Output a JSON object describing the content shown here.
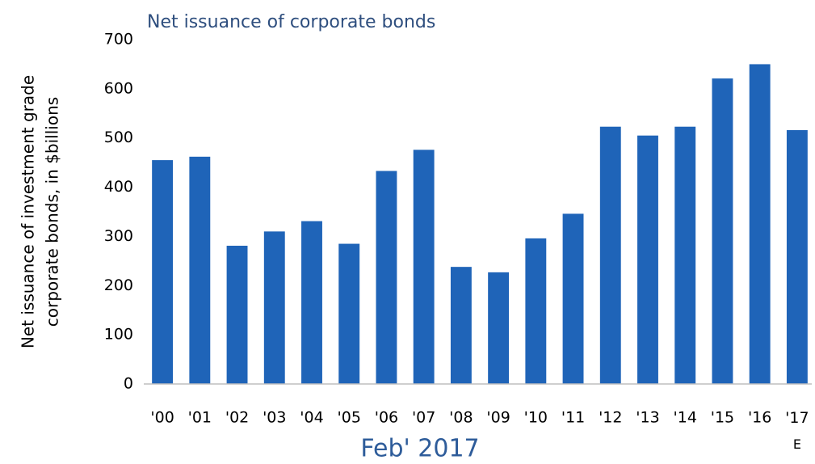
{
  "chart_data": {
    "type": "bar",
    "title": "Net issuance of corporate bonds",
    "y_label": [
      "Net issuance of investment grade",
      "corporate bonds, in $billions"
    ],
    "annotation": "Feb' 2017",
    "categories": [
      "'00",
      "'01",
      "'02",
      "'03",
      "'04",
      "'05",
      "'06",
      "'07",
      "'08",
      "'09",
      "'10",
      "'11",
      "'12",
      "'13",
      "'14",
      "'15",
      "'16",
      "'17 E"
    ],
    "values": [
      455,
      462,
      281,
      310,
      331,
      285,
      433,
      476,
      238,
      227,
      296,
      346,
      523,
      505,
      523,
      621,
      650,
      516
    ],
    "color": "#1f64b8",
    "ylim": [
      0,
      700
    ],
    "yticks": [
      0,
      100,
      200,
      300,
      400,
      500,
      600,
      700
    ],
    "grid": false
  }
}
